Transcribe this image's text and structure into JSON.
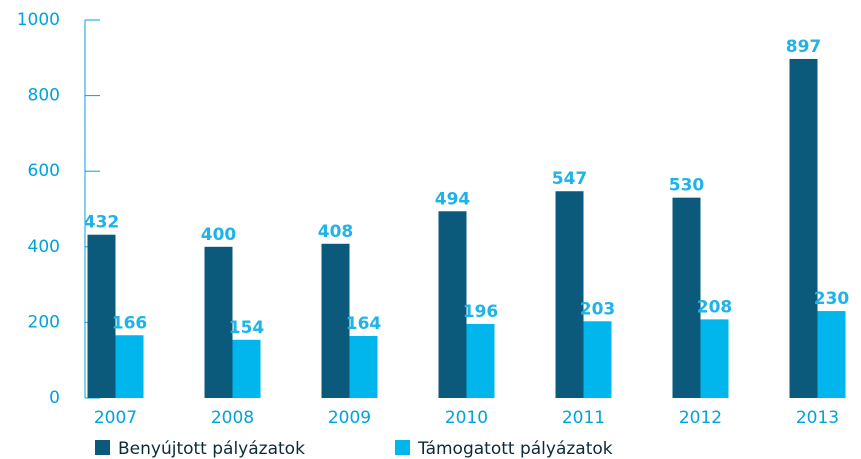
{
  "chart_data": {
    "type": "bar",
    "categories": [
      "2007",
      "2008",
      "2009",
      "2010",
      "2011",
      "2012",
      "2013"
    ],
    "series": [
      {
        "name": "Benyújtott pályázatok",
        "color": "#0b5a7c",
        "values": [
          432,
          400,
          408,
          494,
          547,
          530,
          897
        ]
      },
      {
        "name": "Támogatott pályázatok",
        "color": "#00b6ec",
        "values": [
          166,
          154,
          164,
          196,
          203,
          208,
          230
        ]
      }
    ],
    "ylim": [
      0,
      1000
    ],
    "yticks": [
      0,
      200,
      400,
      600,
      800,
      1000
    ],
    "legend": "bottom-left"
  }
}
